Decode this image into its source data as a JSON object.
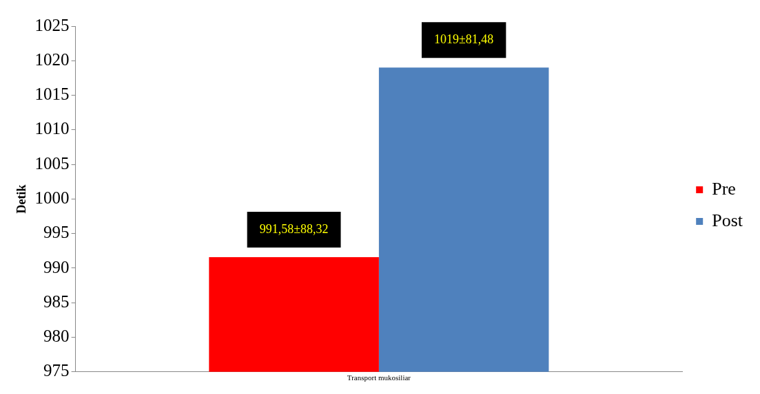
{
  "chart_data": {
    "type": "bar",
    "ylabel": "Detik",
    "categories": [
      "Transport mukosiliar"
    ],
    "series": [
      {
        "name": "Pre",
        "color": "#ff0000",
        "values": [
          991.58
        ],
        "value_labels": [
          "991,58±88,32"
        ]
      },
      {
        "name": "Post",
        "color": "#4f81bd",
        "values": [
          1019
        ],
        "value_labels": [
          "1019±81,48"
        ]
      }
    ],
    "ylim": [
      975,
      1025
    ],
    "yticks": [
      975,
      980,
      985,
      990,
      995,
      1000,
      1005,
      1010,
      1015,
      1020,
      1025
    ],
    "grid": false,
    "legend": "right"
  }
}
